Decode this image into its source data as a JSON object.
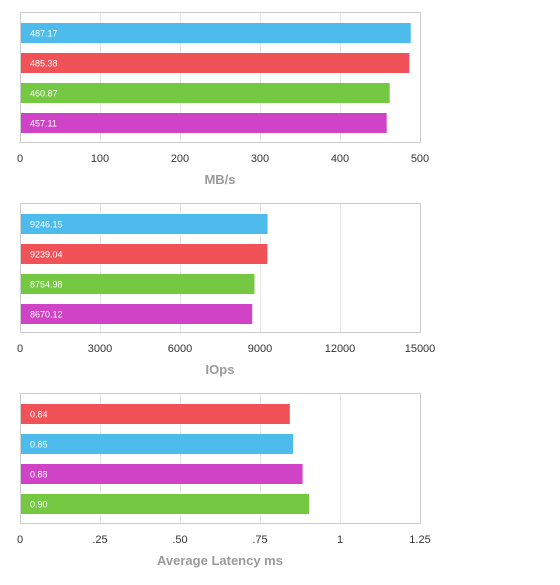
{
  "colors": {
    "blue": "#4dbbec",
    "red": "#f05258",
    "green": "#74c842",
    "magenta": "#d042c6",
    "frame": "#cccccc",
    "grid": "#e6e6e6"
  },
  "chart_data": [
    {
      "type": "bar",
      "orientation": "horizontal",
      "xlabel": "MB/s",
      "xlim": [
        0,
        500
      ],
      "ticks": [
        "0",
        "100",
        "200",
        "300",
        "400",
        "500"
      ],
      "tick_values": [
        0,
        100,
        200,
        300,
        400,
        500
      ],
      "grid": true,
      "bars": [
        {
          "value": 487.17,
          "label": "487.17",
          "color": "blue"
        },
        {
          "value": 485.38,
          "label": "485.38",
          "color": "red"
        },
        {
          "value": 460.87,
          "label": "460.87",
          "color": "green"
        },
        {
          "value": 457.11,
          "label": "457.11",
          "color": "magenta"
        }
      ]
    },
    {
      "type": "bar",
      "orientation": "horizontal",
      "xlabel": "IOps",
      "xlim": [
        0,
        15000
      ],
      "ticks": [
        "0",
        "3000",
        "6000",
        "9000",
        "12000",
        "15000"
      ],
      "tick_values": [
        0,
        3000,
        6000,
        9000,
        12000,
        15000
      ],
      "grid": true,
      "bars": [
        {
          "value": 9246.15,
          "label": "9246.15",
          "color": "blue"
        },
        {
          "value": 9239.04,
          "label": "9239.04",
          "color": "red"
        },
        {
          "value": 8754.98,
          "label": "8754.98",
          "color": "green"
        },
        {
          "value": 8670.12,
          "label": "8670.12",
          "color": "magenta"
        }
      ]
    },
    {
      "type": "bar",
      "orientation": "horizontal",
      "xlabel": "Average Latency ms",
      "xlim": [
        0,
        1.25
      ],
      "ticks": [
        "0",
        ".25",
        ".50",
        ".75",
        "1",
        "1.25"
      ],
      "tick_values": [
        0,
        0.25,
        0.5,
        0.75,
        1,
        1.25
      ],
      "grid": true,
      "bars": [
        {
          "value": 0.84,
          "label": "0.84",
          "color": "red"
        },
        {
          "value": 0.85,
          "label": "0.85",
          "color": "blue"
        },
        {
          "value": 0.88,
          "label": "0.88",
          "color": "magenta"
        },
        {
          "value": 0.9,
          "label": "0.90",
          "color": "green"
        }
      ]
    }
  ]
}
